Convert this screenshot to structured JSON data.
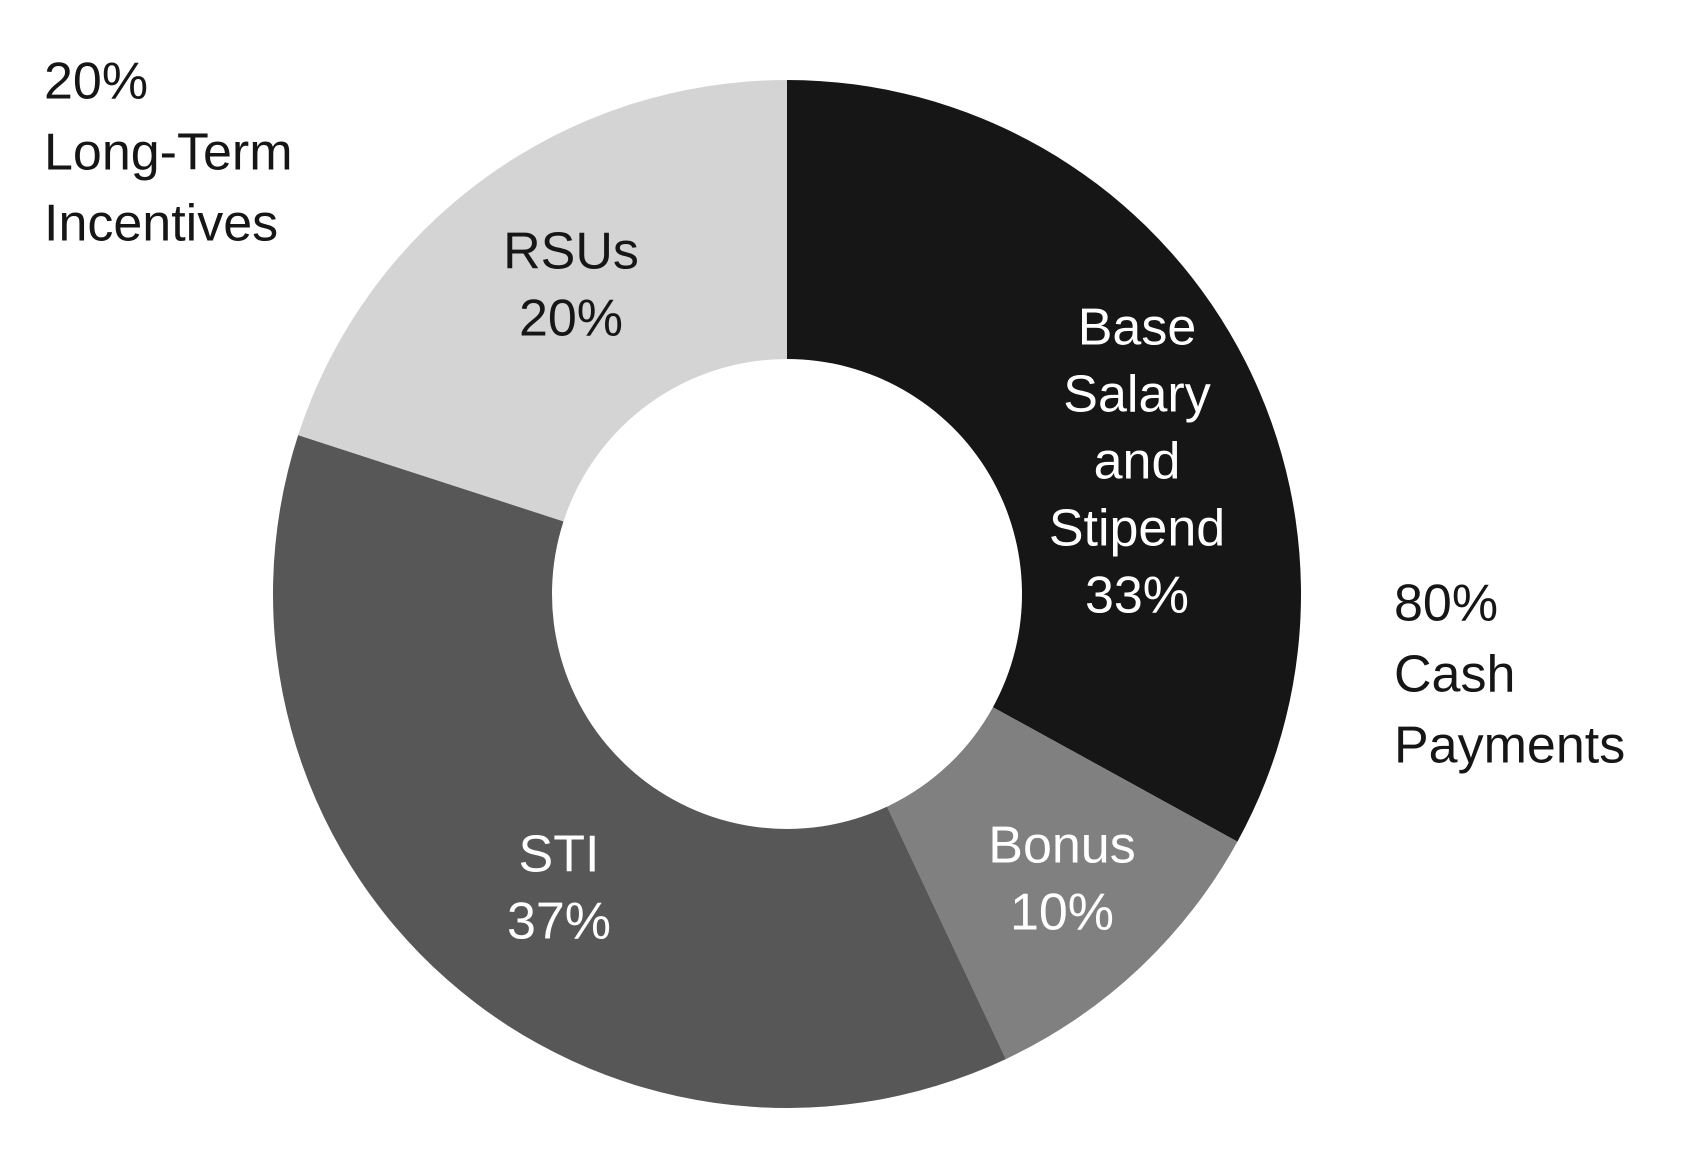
{
  "chart_data": {
    "type": "pie",
    "donut": true,
    "slices": [
      {
        "label_lines": [
          "Base",
          "Salary",
          "and",
          "Stipend"
        ],
        "value": 33,
        "value_label": "33%",
        "color": "#161616",
        "text_color": "#ffffff"
      },
      {
        "label_lines": [
          "Bonus"
        ],
        "value": 10,
        "value_label": "10%",
        "color": "#808080",
        "text_color": "#ffffff"
      },
      {
        "label_lines": [
          "STI"
        ],
        "value": 37,
        "value_label": "37%",
        "color": "#575757",
        "text_color": "#ffffff"
      },
      {
        "label_lines": [
          "RSUs"
        ],
        "value": 20,
        "value_label": "20%",
        "color": "#d4d4d4",
        "text_color": "#161616"
      }
    ],
    "group_annotations": [
      {
        "lines": [
          "20%",
          "Long-Term",
          "Incentives"
        ],
        "placement": "top-left"
      },
      {
        "lines": [
          "80%",
          "Cash",
          "Payments"
        ],
        "placement": "right"
      }
    ],
    "start_angle": "12 o'clock",
    "direction": "clockwise"
  }
}
